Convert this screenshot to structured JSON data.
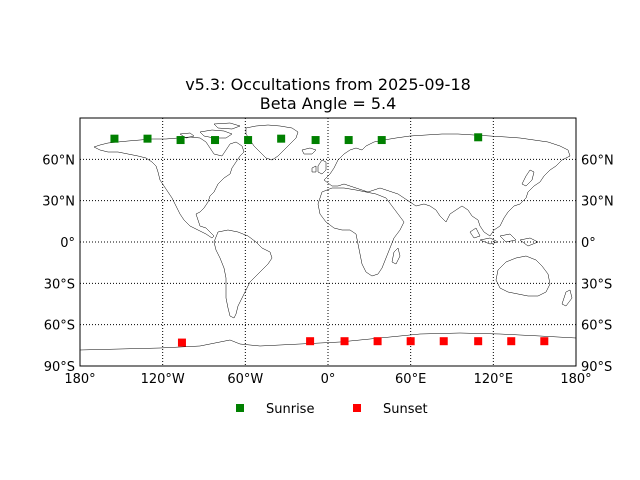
{
  "chart_data": {
    "type": "scatter",
    "title": "v5.3: Occultations from 2025-09-18",
    "subtitle": "Beta Angle = 5.4",
    "xlim": [
      -180,
      180
    ],
    "ylim": [
      -90,
      90
    ],
    "x_ticks": [
      {
        "value": -180,
        "label": "180°"
      },
      {
        "value": -120,
        "label": "120°W"
      },
      {
        "value": -60,
        "label": "60°W"
      },
      {
        "value": 0,
        "label": "0°"
      },
      {
        "value": 60,
        "label": "60°E"
      },
      {
        "value": 120,
        "label": "120°E"
      },
      {
        "value": 180,
        "label": "180°"
      }
    ],
    "y_ticks": [
      {
        "value": 60,
        "label": "60°N"
      },
      {
        "value": 30,
        "label": "30°N"
      },
      {
        "value": 0,
        "label": "0°"
      },
      {
        "value": -30,
        "label": "30°S"
      },
      {
        "value": -60,
        "label": "60°S"
      },
      {
        "value": -90,
        "label": "90°S"
      }
    ],
    "grid": true,
    "grid_lons": [
      -120,
      -60,
      0,
      60,
      120
    ],
    "grid_lats": [
      -60,
      -30,
      0,
      30,
      60
    ],
    "legend": "bottom-center",
    "series": [
      {
        "name": "Sunrise",
        "color": "#008000",
        "marker": "square",
        "x": [
          -155,
          -131,
          -107,
          -82,
          -58,
          -34,
          -9,
          15,
          39,
          109
        ],
        "y": [
          75,
          75,
          74,
          74,
          74,
          75,
          74,
          74,
          74,
          76
        ]
      },
      {
        "name": "Sunset",
        "color": "#ff0000",
        "marker": "square",
        "x": [
          -106,
          -13,
          12,
          36,
          60,
          84,
          109,
          133,
          157
        ],
        "y": [
          -73,
          -72,
          -72,
          -72,
          -72,
          -72,
          -72,
          -72,
          -72
        ]
      }
    ]
  }
}
